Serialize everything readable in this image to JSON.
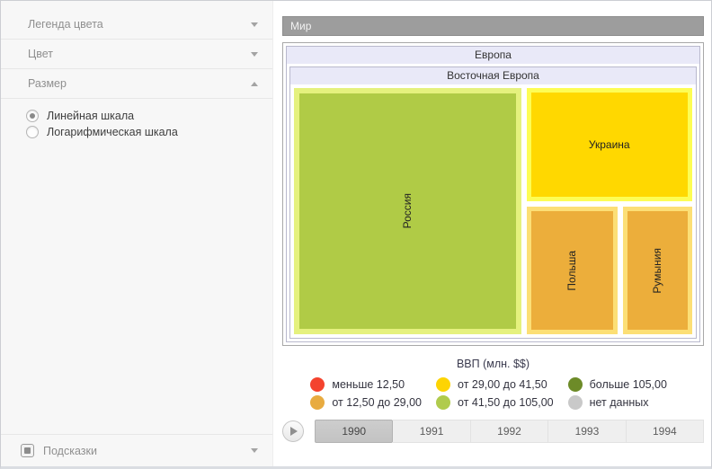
{
  "sidebar": {
    "panels": [
      {
        "label": "Легенда цвета",
        "state": "collapsed"
      },
      {
        "label": "Цвет",
        "state": "collapsed"
      },
      {
        "label": "Размер",
        "state": "expanded"
      }
    ],
    "size_options": [
      {
        "label": "Линейная шкала",
        "selected": true
      },
      {
        "label": "Логарифмическая шкала",
        "selected": false
      }
    ],
    "tooltips": {
      "label": "Подсказки",
      "state": "collapsed",
      "checkbox_filled": true
    }
  },
  "treemap": {
    "root_label": "Мир",
    "region_label": "Европа",
    "subregion_label": "Восточная Европа",
    "cells": [
      {
        "name": "Россия",
        "fill": "#b0cb46",
        "border": "#e5f17e",
        "color_bin": "от 41,50 до 105,00"
      },
      {
        "name": "Украина",
        "fill": "#ffd800",
        "border": "#fdfd55",
        "color_bin": "от 29,00 до 41,50"
      },
      {
        "name": "Польша",
        "fill": "#ecae3b",
        "border": "#fcdf76",
        "color_bin": "от 12,50 до 29,00"
      },
      {
        "name": "Румыния",
        "fill": "#ecae3b",
        "border": "#fcdf76",
        "color_bin": "от 12,50 до 29,00"
      }
    ]
  },
  "legend": {
    "title": "ВВП (млн. $$)",
    "items": [
      {
        "label": "меньше 12,50",
        "color": "#f4432e"
      },
      {
        "label": "от 12,50 до 29,00",
        "color": "#e8ab40"
      },
      {
        "label": "от 29,00 до 41,50",
        "color": "#fdd403"
      },
      {
        "label": "от 41,50 до 105,00",
        "color": "#b0cb4d"
      },
      {
        "label": "больше 105,00",
        "color": "#6d8b28"
      },
      {
        "label": "нет данных",
        "color": "#c9c9c9"
      }
    ]
  },
  "timeline": {
    "years": [
      "1990",
      "1991",
      "1992",
      "1993",
      "1994"
    ],
    "selected": "1990"
  },
  "chart_data": {
    "type": "treemap",
    "title": "ВВП (млн. $$)",
    "hierarchy": {
      "Мир": {
        "Европа": {
          "Восточная Европа": [
            "Россия",
            "Украина",
            "Польша",
            "Румыния"
          ]
        }
      }
    },
    "color_bins": [
      "меньше 12,50",
      "от 12,50 до 29,00",
      "от 29,00 до 41,50",
      "от 41,50 до 105,00",
      "больше 105,00",
      "нет данных"
    ],
    "cell_color_bins": {
      "Россия": "от 41,50 до 105,00",
      "Украина": "от 29,00 до 41,50",
      "Польша": "от 12,50 до 29,00",
      "Румыния": "от 12,50 до 29,00"
    },
    "timeline_years": [
      "1990",
      "1991",
      "1992",
      "1993",
      "1994"
    ],
    "selected_year": "1990"
  }
}
